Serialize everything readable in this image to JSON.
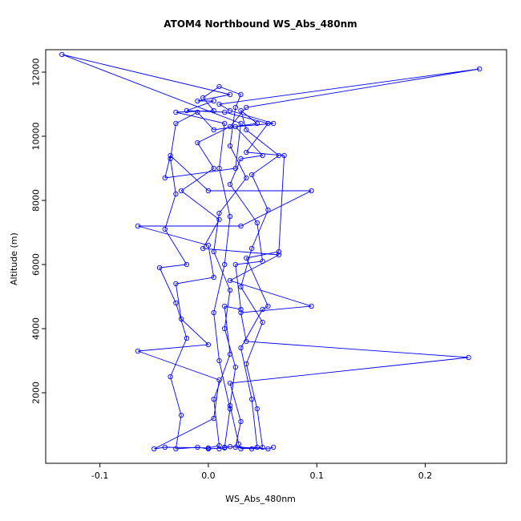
{
  "title": "ATOM4 Northbound WS_Abs_480nm",
  "chart_data": {
    "type": "line",
    "title": "ATOM4 Northbound WS_Abs_480nm",
    "xlabel": "WS_Abs_480nm",
    "ylabel": "Altitude (m)",
    "xlim": [
      -0.15,
      0.275
    ],
    "ylim": [
      -200,
      12700
    ],
    "x_ticks": [
      -0.1,
      0.0,
      0.1,
      0.2
    ],
    "x_tick_labels": [
      "-0.1",
      "0.0",
      "0.1",
      "0.2"
    ],
    "y_ticks": [
      2000,
      4000,
      6000,
      8000,
      10000,
      12000
    ],
    "grid": false,
    "legend": "none",
    "marker": "open-circle",
    "line_color": "#0000FF",
    "axis_color": "#000000",
    "background": "#FFFFFF",
    "points": [
      [
        0.01,
        250
      ],
      [
        0.015,
        300
      ],
      [
        0.02,
        1500
      ],
      [
        0.01,
        3000
      ],
      [
        0.005,
        4500
      ],
      [
        0.015,
        6000
      ],
      [
        0.02,
        7500
      ],
      [
        0.01,
        9000
      ],
      [
        0.015,
        10400
      ],
      [
        -0.03,
        10750
      ],
      [
        0.005,
        10800
      ],
      [
        -0.005,
        11200
      ],
      [
        0.01,
        11550
      ],
      [
        0.03,
        11300
      ],
      [
        0.025,
        10900
      ],
      [
        0.02,
        9700
      ],
      [
        0.035,
        8700
      ],
      [
        0.01,
        7600
      ],
      [
        0.005,
        6400
      ],
      [
        0.02,
        5200
      ],
      [
        0.015,
        4000
      ],
      [
        0.025,
        2800
      ],
      [
        0.02,
        1600
      ],
      [
        0.028,
        400
      ],
      [
        0.03,
        250
      ],
      [
        0.045,
        300
      ],
      [
        0.04,
        1800
      ],
      [
        0.03,
        3400
      ],
      [
        0.05,
        4600
      ],
      [
        0.055,
        4700
      ],
      [
        0.035,
        6200
      ],
      [
        0.065,
        6400
      ],
      [
        0.07,
        9400
      ],
      [
        0.035,
        9500
      ],
      [
        0.055,
        10400
      ],
      [
        0.015,
        10750
      ],
      [
        -0.02,
        10800
      ],
      [
        0.005,
        11100
      ],
      [
        -0.01,
        11100
      ],
      [
        0.02,
        11300
      ],
      [
        -0.135,
        12550
      ],
      [
        0.03,
        10400
      ],
      [
        0.025,
        9000
      ],
      [
        -0.04,
        8700
      ],
      [
        -0.035,
        9400
      ],
      [
        0.0,
        8300
      ],
      [
        0.095,
        8300
      ],
      [
        0.03,
        7200
      ],
      [
        -0.065,
        7200
      ],
      [
        0.0,
        6600
      ],
      [
        0.005,
        5600
      ],
      [
        -0.03,
        5400
      ],
      [
        -0.025,
        4300
      ],
      [
        0.0,
        3500
      ],
      [
        -0.065,
        3300
      ],
      [
        0.01,
        2400
      ],
      [
        0.005,
        1200
      ],
      [
        -0.05,
        250
      ],
      [
        -0.04,
        300
      ],
      [
        0.0,
        280
      ],
      [
        0.01,
        350
      ],
      [
        0.005,
        1800
      ],
      [
        0.02,
        3200
      ],
      [
        0.015,
        4700
      ],
      [
        0.03,
        4600
      ],
      [
        0.025,
        6000
      ],
      [
        0.05,
        6100
      ],
      [
        0.045,
        7300
      ],
      [
        0.02,
        8500
      ],
      [
        0.03,
        9300
      ],
      [
        0.05,
        9400
      ],
      [
        0.025,
        10300
      ],
      [
        0.06,
        10400
      ],
      [
        0.02,
        10800
      ],
      [
        0.01,
        11000
      ],
      [
        0.25,
        12100
      ],
      [
        0.035,
        10900
      ],
      [
        0.02,
        10300
      ],
      [
        -0.01,
        9800
      ],
      [
        0.005,
        9000
      ],
      [
        -0.025,
        8300
      ],
      [
        0.01,
        7400
      ],
      [
        -0.005,
        6500
      ],
      [
        0.065,
        6300
      ],
      [
        0.02,
        5500
      ],
      [
        0.095,
        4700
      ],
      [
        0.03,
        4500
      ],
      [
        0.035,
        3600
      ],
      [
        0.24,
        3100
      ],
      [
        0.02,
        2300
      ],
      [
        0.03,
        1100
      ],
      [
        0.025,
        300
      ],
      [
        0.04,
        250
      ],
      [
        0.05,
        300
      ],
      [
        0.045,
        1500
      ],
      [
        0.035,
        2900
      ],
      [
        0.05,
        4200
      ],
      [
        0.03,
        5300
      ],
      [
        0.04,
        6500
      ],
      [
        0.055,
        7700
      ],
      [
        0.04,
        8800
      ],
      [
        0.065,
        9400
      ],
      [
        0.035,
        10200
      ],
      [
        0.03,
        10800
      ],
      [
        0.045,
        10400
      ],
      [
        0.005,
        10200
      ],
      [
        -0.01,
        10750
      ],
      [
        -0.03,
        10400
      ],
      [
        -0.035,
        9300
      ],
      [
        -0.03,
        8200
      ],
      [
        -0.04,
        7100
      ],
      [
        -0.02,
        6000
      ],
      [
        -0.045,
        5900
      ],
      [
        -0.03,
        4800
      ],
      [
        -0.02,
        3700
      ],
      [
        -0.035,
        2500
      ],
      [
        -0.025,
        1300
      ],
      [
        -0.03,
        250
      ],
      [
        -0.01,
        300
      ],
      [
        0.0,
        250
      ],
      [
        0.015,
        280
      ],
      [
        0.02,
        320
      ],
      [
        0.055,
        250
      ],
      [
        0.06,
        300
      ]
    ]
  }
}
